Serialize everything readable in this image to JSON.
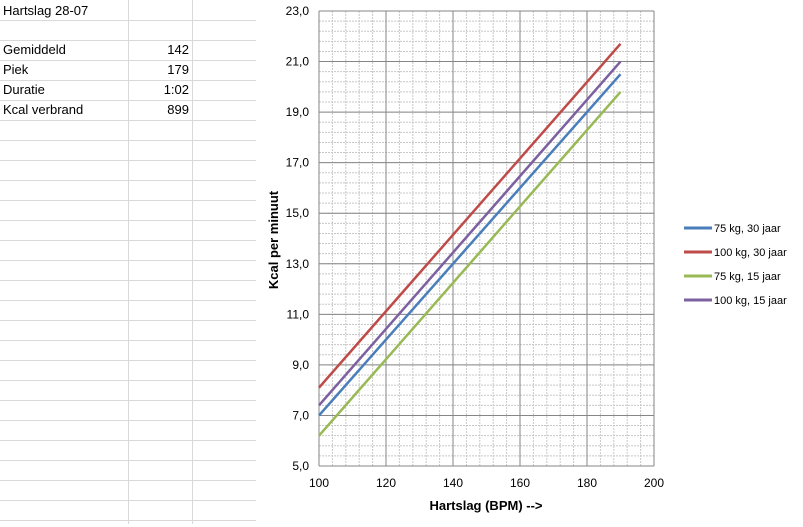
{
  "sheet": {
    "title": "Hartslag 28-07",
    "rows": [
      {
        "label": "Gemiddeld",
        "value": "142"
      },
      {
        "label": "Piek",
        "value": "179"
      },
      {
        "label": "Duratie",
        "value": "1:02"
      },
      {
        "label": "Kcal verbrand",
        "value": "899"
      }
    ]
  },
  "chart_data": {
    "type": "line",
    "title": "",
    "xlabel": "Hartslag (BPM) -->",
    "ylabel": "Kcal per minuut",
    "xlim": [
      100,
      200
    ],
    "ylim": [
      5.0,
      23.0
    ],
    "x_ticks": [
      "100",
      "120",
      "140",
      "160",
      "180",
      "200"
    ],
    "y_ticks": [
      "5,0",
      "7,0",
      "9,0",
      "11,0",
      "13,0",
      "15,0",
      "17,0",
      "19,0",
      "21,0",
      "23,0"
    ],
    "grid": true,
    "legend_position": "right",
    "series": [
      {
        "name": "75 kg, 30 jaar",
        "color": "#4a7ebb",
        "x": [
          100,
          190
        ],
        "y": [
          7.0,
          20.5
        ]
      },
      {
        "name": "100 kg, 30 jaar",
        "color": "#be4b48",
        "x": [
          100,
          190
        ],
        "y": [
          8.1,
          21.7
        ]
      },
      {
        "name": "75 kg, 15 jaar",
        "color": "#98b954",
        "x": [
          100,
          190
        ],
        "y": [
          6.2,
          19.8
        ]
      },
      {
        "name": "100 kg, 15 jaar",
        "color": "#7d60a0",
        "x": [
          100,
          190
        ],
        "y": [
          7.4,
          21.0
        ]
      }
    ]
  }
}
